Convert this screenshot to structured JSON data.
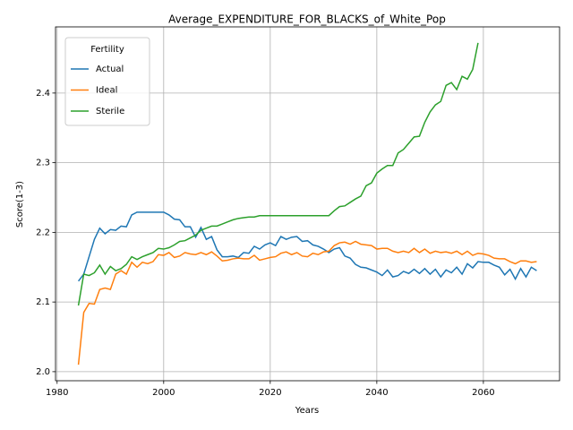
{
  "chart_data": {
    "type": "line",
    "title": "Average_EXPENDITURE_FOR_BLACKS_of_White_Pop",
    "xlabel": "Years",
    "ylabel": "Score(1-3)",
    "legend_title": "Fertility",
    "legend": "upper left",
    "grid": true,
    "x": [
      1984,
      1985,
      1986,
      1987,
      1988,
      1989,
      1990,
      1991,
      1992,
      1993,
      1994,
      1995,
      1996,
      1997,
      1998,
      1999,
      2000,
      2001,
      2002,
      2003,
      2004,
      2005,
      2006,
      2007,
      2008,
      2009,
      2010,
      2011,
      2012,
      2013,
      2014,
      2015,
      2016,
      2017,
      2018,
      2019,
      2020,
      2021,
      2022,
      2023,
      2024,
      2025,
      2026,
      2027,
      2028,
      2029,
      2030,
      2031,
      2032,
      2033,
      2034,
      2035,
      2036,
      2037,
      2038,
      2039,
      2040,
      2041,
      2042,
      2043,
      2044,
      2045,
      2046,
      2047,
      2048,
      2049,
      2050,
      2051,
      2052,
      2053,
      2054,
      2055,
      2056,
      2057,
      2058,
      2059,
      2060,
      2061,
      2062,
      2063,
      2064,
      2065,
      2066,
      2067,
      2068,
      2069,
      2070
    ],
    "series": [
      {
        "name": "Actual",
        "color": "#1f77b4",
        "values": [
          2.13,
          2.14,
          2.165,
          2.19,
          2.206,
          2.198,
          2.204,
          2.203,
          2.209,
          2.208,
          2.225,
          2.229,
          2.229,
          2.229,
          2.229,
          2.229,
          2.229,
          2.225,
          2.219,
          2.218,
          2.208,
          2.208,
          2.193,
          2.207,
          2.19,
          2.194,
          2.175,
          2.165,
          2.165,
          2.166,
          2.164,
          2.171,
          2.17,
          2.18,
          2.176,
          2.182,
          2.185,
          2.181,
          2.194,
          2.19,
          2.193,
          2.194,
          2.187,
          2.188,
          2.182,
          2.18,
          2.176,
          2.171,
          2.176,
          2.178,
          2.166,
          2.163,
          2.154,
          2.15,
          2.149,
          2.146,
          2.143,
          2.138,
          2.146,
          2.136,
          2.138,
          2.144,
          2.141,
          2.147,
          2.141,
          2.148,
          2.14,
          2.147,
          2.136,
          2.146,
          2.142,
          2.15,
          2.14,
          2.155,
          2.149,
          2.158,
          2.157,
          2.157,
          2.153,
          2.15,
          2.139,
          2.147,
          2.133,
          2.148,
          2.136,
          2.15,
          2.145
        ]
      },
      {
        "name": "Ideal",
        "color": "#ff7f0e",
        "values": [
          2.01,
          2.085,
          2.098,
          2.097,
          2.118,
          2.12,
          2.118,
          2.14,
          2.145,
          2.14,
          2.157,
          2.15,
          2.157,
          2.155,
          2.158,
          2.168,
          2.167,
          2.171,
          2.164,
          2.166,
          2.171,
          2.169,
          2.168,
          2.171,
          2.168,
          2.172,
          2.166,
          2.159,
          2.16,
          2.162,
          2.163,
          2.162,
          2.162,
          2.167,
          2.16,
          2.162,
          2.164,
          2.165,
          2.17,
          2.172,
          2.168,
          2.171,
          2.166,
          2.165,
          2.17,
          2.168,
          2.172,
          2.173,
          2.181,
          2.185,
          2.186,
          2.183,
          2.187,
          2.183,
          2.182,
          2.181,
          2.176,
          2.177,
          2.177,
          2.173,
          2.171,
          2.173,
          2.171,
          2.177,
          2.171,
          2.176,
          2.17,
          2.173,
          2.171,
          2.172,
          2.17,
          2.173,
          2.168,
          2.173,
          2.167,
          2.17,
          2.169,
          2.167,
          2.163,
          2.162,
          2.162,
          2.158,
          2.155,
          2.159,
          2.159,
          2.157,
          2.158
        ]
      },
      {
        "name": "Sterile",
        "color": "#2ca02c",
        "values": [
          2.095,
          2.14,
          2.138,
          2.142,
          2.153,
          2.14,
          2.151,
          2.145,
          2.148,
          2.154,
          2.165,
          2.161,
          2.165,
          2.168,
          2.171,
          2.177,
          2.176,
          2.178,
          2.182,
          2.187,
          2.188,
          2.192,
          2.196,
          2.203,
          2.206,
          2.209,
          2.209,
          2.212,
          2.215,
          2.218,
          2.22,
          2.221,
          2.222,
          2.222,
          2.224,
          2.224,
          2.224,
          2.224,
          2.224,
          2.224,
          2.224,
          2.224,
          2.224,
          2.224,
          2.224,
          2.224,
          2.224,
          2.224,
          2.231,
          2.237,
          2.238,
          2.243,
          2.248,
          2.252,
          2.267,
          2.271,
          2.285,
          2.291,
          2.296,
          2.296,
          2.314,
          2.319,
          2.328,
          2.337,
          2.338,
          2.358,
          2.373,
          2.383,
          2.388,
          2.411,
          2.415,
          2.405,
          2.424,
          2.42,
          2.434,
          2.472,
          null,
          null,
          null,
          null,
          null,
          null,
          null,
          null,
          null,
          null,
          null
        ]
      }
    ],
    "xlim": [
      1979.7,
      2074.3
    ],
    "xticks": [
      1980,
      2000,
      2020,
      2040,
      2060
    ],
    "ylim": [
      1.987,
      2.495
    ],
    "yticks": [
      {
        "value": 2,
        "label": "2.0"
      },
      2.1,
      2.2,
      2.3,
      2.4
    ]
  }
}
